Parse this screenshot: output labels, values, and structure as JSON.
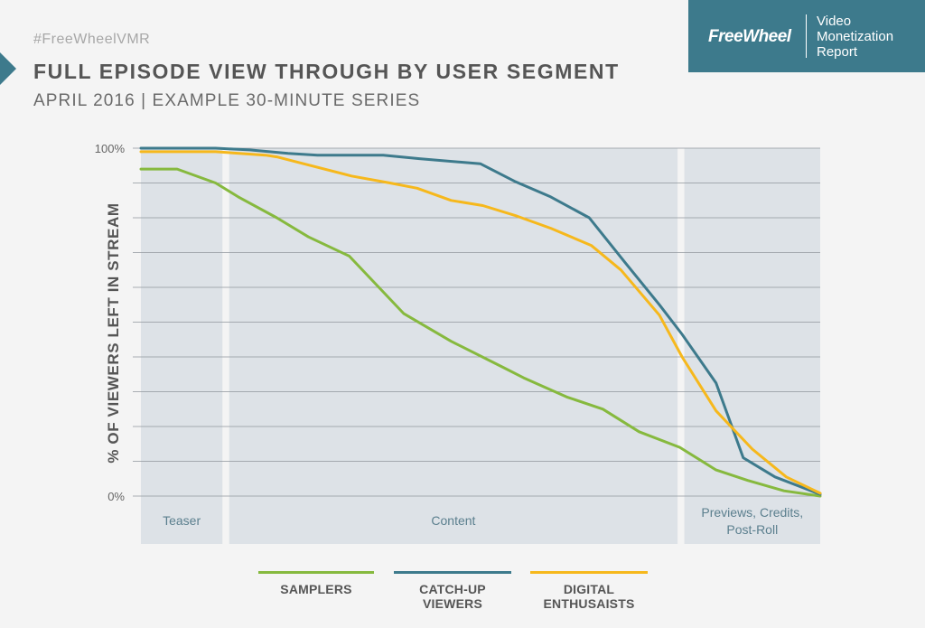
{
  "header": {
    "hashtag": "#FreeWheelVMR",
    "title": "FULL EPISODE VIEW THROUGH BY USER SEGMENT",
    "subtitle": "APRIL 2016  |  EXAMPLE 30-MINUTE SERIES"
  },
  "brand": {
    "logo": "FreeWheel",
    "report_line1": "Video",
    "report_line2": "Monetization",
    "report_line3": "Report"
  },
  "colors": {
    "samplers": "#86b93e",
    "catchup": "#3d7a8c",
    "enthusiasts": "#f6b81c",
    "band": "#dde2e7",
    "band_text": "#5b7f8e"
  },
  "chart_data": {
    "type": "line",
    "title": "FULL EPISODE VIEW THROUGH BY USER SEGMENT",
    "ylabel": "% OF VIEWERS LEFT IN STREAM",
    "xlabel": "",
    "xlim": [
      0,
      30
    ],
    "ylim": [
      0,
      100
    ],
    "y_ticks": [
      0,
      10,
      20,
      30,
      40,
      50,
      60,
      70,
      80,
      90,
      100
    ],
    "y_tick_labels": {
      "0": "0%",
      "100": "100%"
    },
    "grid": true,
    "legend_position": "bottom",
    "segments": [
      {
        "label": "Teaser",
        "start": 0,
        "end": 3.6
      },
      {
        "label": "Content",
        "start": 3.9,
        "end": 23.7
      },
      {
        "label": "Previews, Credits, Post-Roll",
        "start": 24.0,
        "end": 30
      }
    ],
    "series": [
      {
        "name": "SAMPLERS",
        "x": [
          0,
          1.6,
          3.3,
          4.3,
          6.0,
          7.4,
          9.2,
          11.6,
          13.7,
          16.0,
          16.9,
          18.8,
          20.4,
          22.0,
          23.8,
          25.4,
          26.8,
          28.4,
          30
        ],
        "y": [
          94,
          94,
          90,
          86,
          80,
          74.5,
          69,
          52.5,
          44.5,
          37,
          34,
          28.5,
          25,
          18.5,
          14,
          7.5,
          4.5,
          1.5,
          0
        ]
      },
      {
        "name": "CATCH-UP VIEWERS",
        "x": [
          0,
          3.3,
          4.8,
          6.5,
          7.8,
          10.7,
          12.3,
          15.0,
          16.5,
          18.1,
          19.8,
          21.4,
          22.9,
          23.9,
          25.4,
          26.6,
          28.0,
          30
        ],
        "y": [
          100,
          100,
          99.5,
          98.5,
          98,
          98,
          97,
          95.5,
          90.5,
          86,
          80,
          67,
          55,
          46.5,
          32.5,
          11,
          5.5,
          0.5
        ]
      },
      {
        "name": "DIGITAL ENTHUSAISTS",
        "x": [
          0,
          3.3,
          5.5,
          6.0,
          7.2,
          9.3,
          11.0,
          12.2,
          13.7,
          15.1,
          16.6,
          18.1,
          19.9,
          21.2,
          22.9,
          23.9,
          25.4,
          27.0,
          28.5,
          30
        ],
        "y": [
          99,
          99,
          98,
          97.5,
          95.5,
          92,
          90,
          88.5,
          85,
          83.5,
          80.5,
          77,
          72,
          65,
          52,
          40,
          24.5,
          13.5,
          5.5,
          0.8
        ]
      }
    ]
  }
}
